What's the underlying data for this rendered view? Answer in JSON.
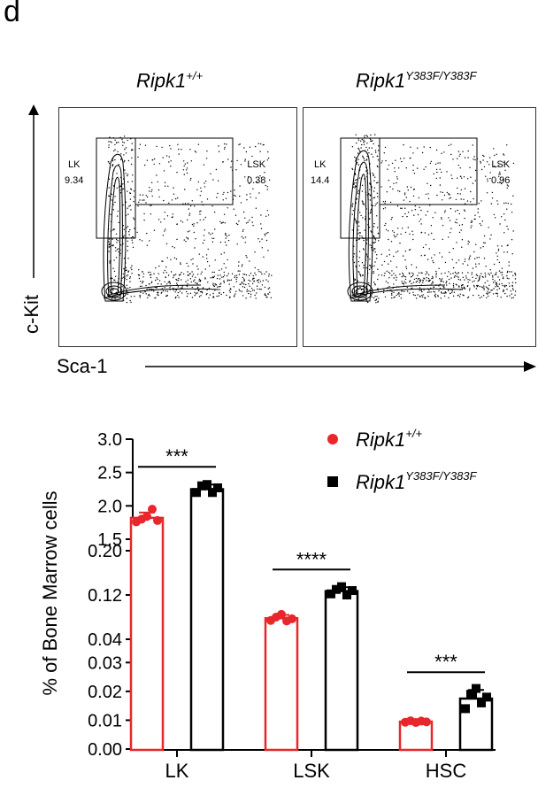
{
  "panel_letter": "d",
  "flow": {
    "x_axis_label": "Sca-1",
    "y_axis_label": "c-Kit",
    "panels": [
      {
        "title_main": "Ripk1",
        "title_sup": "+/+",
        "lk_label": "LK",
        "lk_value": "9.34",
        "lsk_label": "LSK",
        "lsk_value": "0.38"
      },
      {
        "title_main": "Ripk1",
        "title_sup": "Y383F/Y383F",
        "lk_label": "LK",
        "lk_value": "14.4",
        "lsk_label": "LSK",
        "lsk_value": "0.96"
      }
    ]
  },
  "chart_data": {
    "type": "bar",
    "ylabel": "% of Bone Marrow cells",
    "categories": [
      "LK",
      "LSK",
      "HSC"
    ],
    "series": [
      {
        "name": "Ripk1+/+",
        "name_main": "Ripk1",
        "name_sup": "+/+",
        "color": "#e8262b",
        "values": [
          1.82,
          0.078,
          0.0095
        ],
        "errors": [
          0.08,
          0.006,
          0.0006
        ],
        "points": [
          [
            1.76,
            1.8,
            1.84,
            1.95,
            1.78
          ],
          [
            0.074,
            0.08,
            0.085,
            0.073,
            0.077
          ],
          [
            0.0093,
            0.0098,
            0.0092,
            0.0097,
            0.0094
          ]
        ]
      },
      {
        "name": "Ripk1Y383F/Y383F",
        "name_main": "Ripk1",
        "name_sup": "Y383F/Y383F",
        "color": "#000000",
        "values": [
          2.25,
          0.127,
          0.0175
        ],
        "errors": [
          0.07,
          0.007,
          0.003
        ],
        "points": [
          [
            2.2,
            2.3,
            2.32,
            2.2,
            2.27
          ],
          [
            0.122,
            0.13,
            0.135,
            0.12,
            0.128
          ],
          [
            0.014,
            0.019,
            0.021,
            0.016,
            0.018
          ]
        ]
      }
    ],
    "significance": [
      "***",
      "****",
      "***"
    ],
    "y_segments": [
      {
        "range": [
          0,
          0.035
        ],
        "ticks": [
          "0.00",
          "0.01",
          "0.02",
          "0.03"
        ]
      },
      {
        "range": [
          0.04,
          0.2
        ],
        "ticks": [
          "0.04",
          "0.12",
          "0.20"
        ]
      },
      {
        "range": [
          1.5,
          3.0
        ],
        "ticks": [
          "1.5",
          "2.0",
          "2.5",
          "3.0"
        ]
      }
    ]
  }
}
